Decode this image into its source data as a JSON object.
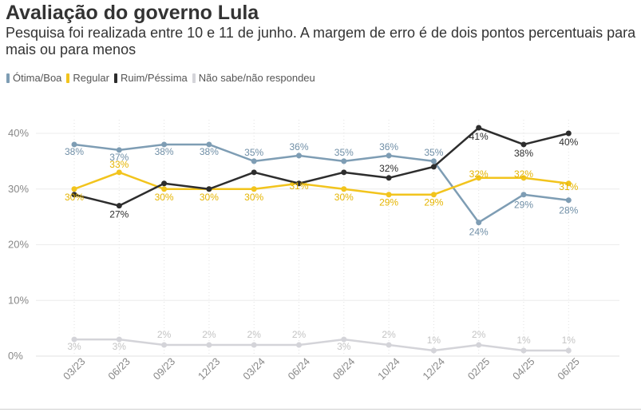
{
  "header": {
    "title": "Avaliação do governo Lula",
    "subtitle": "Pesquisa foi realizada entre 10 e 11 de junho. A margem de erro é de dois pontos percentuais para mais ou para menos"
  },
  "legend": [
    {
      "label": "Ótima/Boa",
      "color": "#7e9db4"
    },
    {
      "label": "Regular",
      "color": "#f2c41d"
    },
    {
      "label": "Ruim/Péssima",
      "color": "#2d2d2d"
    },
    {
      "label": "Não sabe/não respondeu",
      "color": "#d4d4d9"
    }
  ],
  "chart_data": {
    "type": "line",
    "x": [
      "03/23",
      "06/23",
      "09/23",
      "12/23",
      "03/24",
      "06/24",
      "08/24",
      "10/24",
      "12/24",
      "02/25",
      "04/25",
      "06/25"
    ],
    "y_ticks": [
      "0%",
      "10%",
      "20%",
      "30%",
      "40%"
    ],
    "ylim": [
      0,
      40
    ],
    "grid": true,
    "legend_position": "top-left",
    "series": [
      {
        "name": "Ótima/Boa",
        "color": "#7e9db4",
        "label_color": "#6f8ea6",
        "values": [
          38,
          37,
          38,
          38,
          35,
          36,
          35,
          36,
          35,
          24,
          29,
          28
        ],
        "labels": [
          "38%",
          "37%",
          "38%",
          "38%",
          "35%",
          "36%",
          "35%",
          "36%",
          "35%",
          "24%",
          "29%",
          "28%"
        ]
      },
      {
        "name": "Regular",
        "color": "#f2c41d",
        "label_color": "#e5b400",
        "values": [
          30,
          33,
          30,
          30,
          30,
          31,
          30,
          29,
          29,
          32,
          32,
          31
        ],
        "labels": [
          "30%",
          "33%",
          "30%",
          "30%",
          "30%",
          "31%",
          "30%",
          "29%",
          "29%",
          "32%",
          "32%",
          "31%"
        ]
      },
      {
        "name": "Ruim/Péssima",
        "color": "#2d2d2d",
        "label_color": "#2d2d2d",
        "values": [
          29,
          27,
          31,
          30,
          33,
          31,
          33,
          32,
          34,
          41,
          38,
          40
        ],
        "labels": [
          "",
          "27%",
          "",
          "",
          "",
          "",
          "",
          "32%",
          "",
          "41%",
          "38%",
          "40%"
        ]
      },
      {
        "name": "Não sabe/não respondeu",
        "color": "#d4d4d9",
        "label_color": "#c4c4c4",
        "values": [
          3,
          3,
          2,
          2,
          2,
          2,
          3,
          2,
          1,
          2,
          1,
          1
        ],
        "labels": [
          "3%",
          "3%",
          "2%",
          "2%",
          "2%",
          "2%",
          "3%",
          "2%",
          "1%",
          "2%",
          "1%",
          "1%"
        ]
      }
    ]
  }
}
